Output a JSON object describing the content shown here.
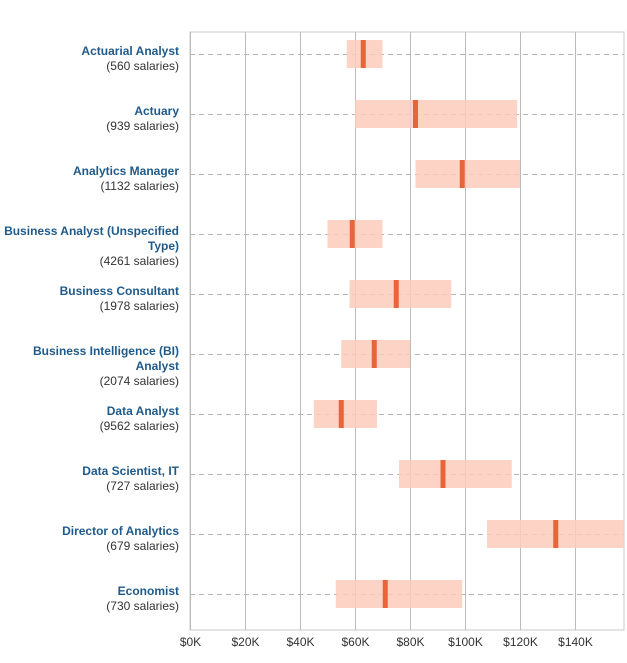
{
  "chart_data": {
    "type": "range",
    "title": "",
    "xlabel": "",
    "ylabel": "",
    "xlim": [
      0,
      158
    ],
    "x_unit": "thousand USD",
    "x_ticks": [
      "$0K",
      "$20K",
      "$40K",
      "$60K",
      "$80K",
      "$100K",
      "$120K",
      "$140K"
    ],
    "x_tick_values": [
      0,
      20,
      40,
      60,
      80,
      100,
      120,
      140
    ],
    "grid": true,
    "colors": {
      "range_box": "#fccbbb",
      "median": "#e8643a",
      "label": "#1f5a8a",
      "count": "#333333",
      "grid": "#bbbbbb"
    },
    "categories": [
      {
        "name": "Actuarial Analyst",
        "name_lines": [
          "Actuarial Analyst"
        ],
        "count_label": "(560 salaries)",
        "low": 57,
        "median": 63,
        "high": 70
      },
      {
        "name": "Actuary",
        "name_lines": [
          "Actuary"
        ],
        "count_label": "(939 salaries)",
        "low": 60,
        "median": 82,
        "high": 119
      },
      {
        "name": "Analytics Manager",
        "name_lines": [
          "Analytics Manager"
        ],
        "count_label": "(1132 salaries)",
        "low": 82,
        "median": 99,
        "high": 120
      },
      {
        "name": "Business Analyst (Unspecified Type)",
        "name_lines": [
          "Business Analyst (Unspecified",
          "Type)"
        ],
        "count_label": "(4261 salaries)",
        "low": 50,
        "median": 59,
        "high": 70
      },
      {
        "name": "Business Consultant",
        "name_lines": [
          "Business Consultant"
        ],
        "count_label": "(1978 salaries)",
        "low": 58,
        "median": 75,
        "high": 95
      },
      {
        "name": "Business Intelligence (BI) Analyst",
        "name_lines": [
          "Business Intelligence (BI)",
          "Analyst"
        ],
        "count_label": "(2074 salaries)",
        "low": 55,
        "median": 67,
        "high": 80
      },
      {
        "name": "Data Analyst",
        "name_lines": [
          "Data Analyst"
        ],
        "count_label": "(9562 salaries)",
        "low": 45,
        "median": 55,
        "high": 68
      },
      {
        "name": "Data Scientist, IT",
        "name_lines": [
          "Data Scientist, IT"
        ],
        "count_label": "(727 salaries)",
        "low": 76,
        "median": 92,
        "high": 117
      },
      {
        "name": "Director of Analytics",
        "name_lines": [
          "Director of Analytics"
        ],
        "count_label": "(679 salaries)",
        "low": 108,
        "median": 133,
        "high": 158
      },
      {
        "name": "Economist",
        "name_lines": [
          "Economist"
        ],
        "count_label": "(730 salaries)",
        "low": 53,
        "median": 71,
        "high": 99
      }
    ]
  }
}
